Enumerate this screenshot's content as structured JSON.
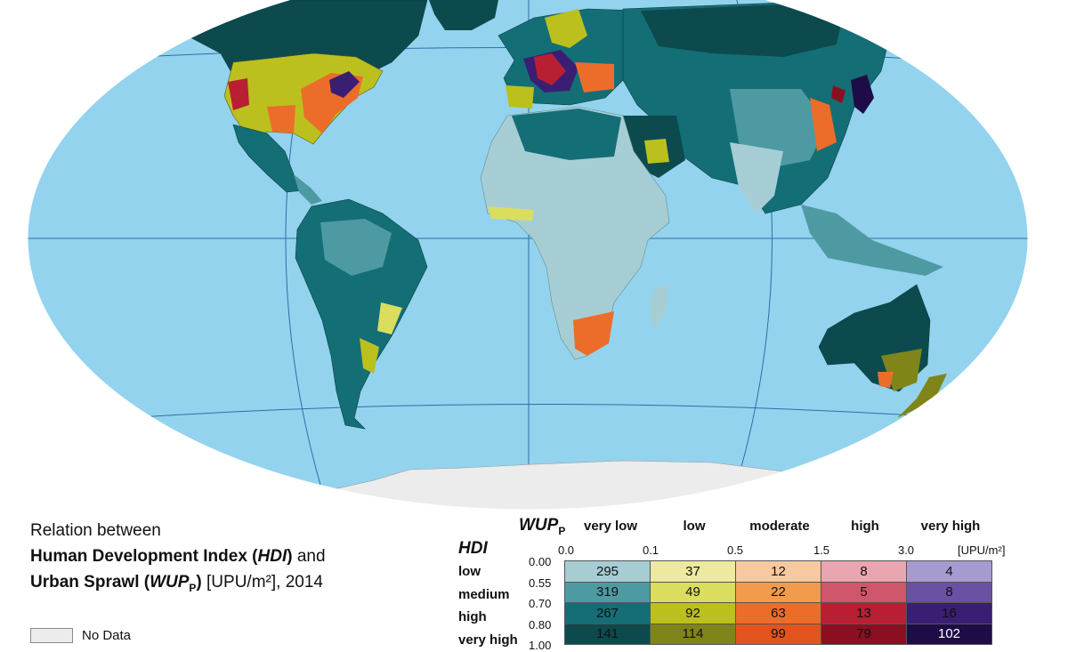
{
  "title": {
    "line1": "Relation between",
    "line2_bold_a": "Human Development Index (",
    "line2_italic": "HDI",
    "line2_bold_b": ")",
    "line2_tail": " and",
    "line3_bold_a": "Urban Sprawl (",
    "line3_italic": "WUP",
    "line3_sub": "P",
    "line3_bold_b": ")",
    "line3_tail": " [UPU/m²], 2014"
  },
  "no_data_label": "No Data",
  "legend": {
    "wup_label": "WUP",
    "wup_sub": "P",
    "hdi_label": "HDI",
    "unit": "[UPU/m²]",
    "columns": [
      "very low",
      "low",
      "moderate",
      "high",
      "very high"
    ],
    "x_ticks": [
      "0.0",
      "0.1",
      "0.5",
      "1.5",
      "3.0"
    ],
    "rows": [
      "low",
      "medium",
      "high",
      "very high"
    ],
    "y_ticks": [
      "0.00",
      "0.55",
      "0.70",
      "0.80",
      "1.00"
    ],
    "values": [
      [
        "295",
        "37",
        "12",
        "8",
        "4"
      ],
      [
        "319",
        "49",
        "22",
        "5",
        "8"
      ],
      [
        "267",
        "92",
        "63",
        "13",
        "16"
      ],
      [
        "141",
        "114",
        "99",
        "79",
        "102"
      ]
    ],
    "colors": [
      [
        "#a7cdd4",
        "#ede9a0",
        "#f6c9a0",
        "#e9a6b1",
        "#a69ad1"
      ],
      [
        "#4e9aa3",
        "#dadd5e",
        "#f29b4c",
        "#d0566b",
        "#6a51a3"
      ],
      [
        "#146e76",
        "#bcc01e",
        "#ec6d2a",
        "#b81f33",
        "#3a1e73"
      ],
      [
        "#0c4a4e",
        "#7f8518",
        "#e2541d",
        "#8b0f20",
        "#1d0c45"
      ]
    ]
  },
  "map": {
    "ocean_color": "#93d3ee",
    "antarctica_color": "#ececec",
    "land_base_color": "#146e76"
  }
}
